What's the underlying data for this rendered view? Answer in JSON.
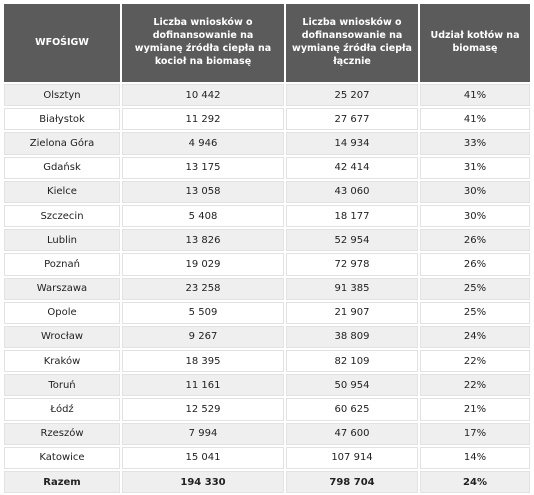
{
  "table": {
    "header": [
      "WFOŚIGW",
      "Liczba wniosków o dofinansowanie na wymianę źródła ciepła na kocioł na biomasę",
      "Liczba wniosków o dofinansowanie na wymianę źródła ciepła łącznie",
      "Udział kotłów na biomasę"
    ],
    "rows": [
      [
        "Olsztyn",
        "10 442",
        "25 207",
        "41%"
      ],
      [
        "Białystok",
        "11 292",
        "27 677",
        "41%"
      ],
      [
        "Zielona Góra",
        "4 946",
        "14 934",
        "33%"
      ],
      [
        "Gdańsk",
        "13 175",
        "42 414",
        "31%"
      ],
      [
        "Kielce",
        "13 058",
        "43 060",
        "30%"
      ],
      [
        "Szczecin",
        "5 408",
        "18 177",
        "30%"
      ],
      [
        "Lublin",
        "13 826",
        "52 954",
        "26%"
      ],
      [
        "Poznań",
        "19 029",
        "72 978",
        "26%"
      ],
      [
        "Warszawa",
        "23 258",
        "91 385",
        "25%"
      ],
      [
        "Opole",
        "5 509",
        "21 907",
        "25%"
      ],
      [
        "Wrocław",
        "9 267",
        "38 809",
        "24%"
      ],
      [
        "Kraków",
        "18 395",
        "82 109",
        "22%"
      ],
      [
        "Toruń",
        "11 161",
        "50 954",
        "22%"
      ],
      [
        "Łódź",
        "12 529",
        "60 625",
        "21%"
      ],
      [
        "Rzeszów",
        "7 994",
        "47 600",
        "17%"
      ],
      [
        "Katowice",
        "15 041",
        "107 914",
        "14%"
      ],
      [
        "Razem",
        "194 330",
        "798 704",
        "24%"
      ]
    ]
  }
}
